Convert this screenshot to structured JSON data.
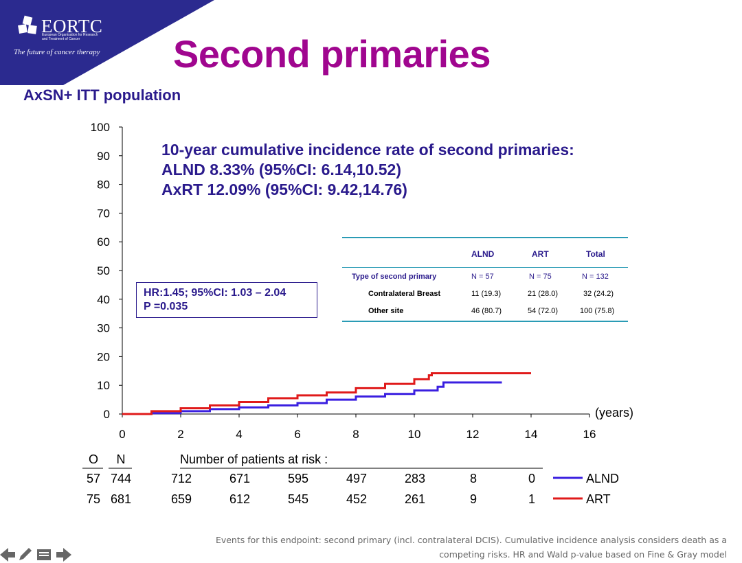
{
  "org": {
    "name": "EORTC",
    "subtitle_line1": "European Organisation for Research",
    "subtitle_line2": "and Treatment of Cancer",
    "tagline": "The future of cancer therapy"
  },
  "slide": {
    "title": "Second primaries",
    "subtitle": "AxSN+ ITT population"
  },
  "annotation": {
    "line1": "10-year cumulative incidence rate of second primaries:",
    "line2": "ALND 8.33% (95%CI: 6.14,10.52)",
    "line3": "AxRT 12.09% (95%CI: 9.42,14.76)"
  },
  "hr_box": {
    "line1": "HR:1.45; 95%CI: 1.03 – 2.04",
    "line2": "P =0.035"
  },
  "table": {
    "columns": [
      "ALND",
      "ART",
      "Total"
    ],
    "header_row": {
      "label": "Type of second primary",
      "values": [
        "N = 57",
        "N = 75",
        "N = 132"
      ]
    },
    "rows": [
      {
        "label": "Contralateral Breast",
        "values": [
          "11 (19.3)",
          "21 (28.0)",
          "32 (24.2)"
        ]
      },
      {
        "label": "Other site",
        "values": [
          "46 (80.7)",
          "54 (72.0)",
          "100 (75.8)"
        ]
      }
    ]
  },
  "chart_data": {
    "type": "line",
    "title": "Second primaries",
    "xlabel": "(years)",
    "ylabel": "",
    "xlim": [
      0,
      16
    ],
    "ylim": [
      0,
      100
    ],
    "x_ticks": [
      0,
      2,
      4,
      6,
      8,
      10,
      12,
      14,
      16
    ],
    "y_ticks": [
      0,
      10,
      20,
      30,
      40,
      50,
      60,
      70,
      80,
      90,
      100
    ],
    "series": [
      {
        "name": "ALND",
        "color": "#3a1fe0",
        "points": [
          [
            0,
            0
          ],
          [
            1,
            0.3
          ],
          [
            2,
            1.0
          ],
          [
            3,
            1.7
          ],
          [
            4,
            2.3
          ],
          [
            5,
            3.0
          ],
          [
            6,
            3.8
          ],
          [
            7,
            5.0
          ],
          [
            8,
            6.1
          ],
          [
            9,
            7.0
          ],
          [
            10,
            8.2
          ],
          [
            10.8,
            9.5
          ],
          [
            11,
            11.0
          ],
          [
            13,
            11.0
          ]
        ]
      },
      {
        "name": "ART",
        "color": "#e01a1a",
        "points": [
          [
            0,
            0
          ],
          [
            1,
            1.0
          ],
          [
            2,
            2.0
          ],
          [
            3,
            3.0
          ],
          [
            4,
            4.2
          ],
          [
            5,
            5.5
          ],
          [
            6,
            6.5
          ],
          [
            7,
            7.5
          ],
          [
            8,
            9.0
          ],
          [
            9,
            10.5
          ],
          [
            10,
            12.1
          ],
          [
            10.5,
            13.5
          ],
          [
            10.6,
            14.2
          ],
          [
            14,
            14.2
          ]
        ]
      }
    ],
    "risk_table": {
      "label": "Number of patients at risk :",
      "o_header": "O",
      "n_header": "N",
      "times": [
        2,
        4,
        6,
        8,
        10,
        12,
        14
      ],
      "rows": [
        {
          "name": "ALND",
          "o": "57",
          "n": "744",
          "values": [
            "712",
            "671",
            "595",
            "497",
            "283",
            "8",
            "0"
          ]
        },
        {
          "name": "ART",
          "o": "75",
          "n": "681",
          "values": [
            "659",
            "612",
            "545",
            "452",
            "261",
            "9",
            "1"
          ]
        }
      ]
    }
  },
  "footnote": {
    "line1": "Events for this endpoint: second primary (incl. contralateral DCIS). Cumulative incidence analysis considers death as a",
    "line2": "competing risks. HR and Wald p-value based on Fine & Gray model"
  },
  "nav": {
    "icons": [
      "arrow-left-icon",
      "pen-icon",
      "notes-icon",
      "arrow-right-icon"
    ]
  }
}
